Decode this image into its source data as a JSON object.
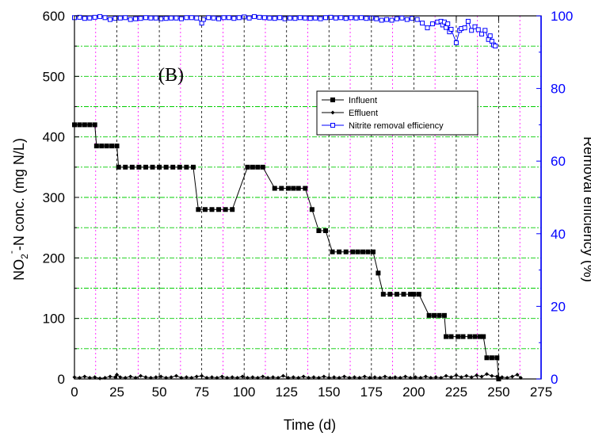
{
  "chart_data": {
    "type": "line",
    "panel_label": "(B)",
    "xlabel": "Time (d)",
    "ylabel_left": "NO2-N conc. (mg N/L)",
    "ylabel_right": "Removal efficiency (%)",
    "xlim": [
      0,
      275
    ],
    "ylim_left": [
      0,
      600
    ],
    "ylim_right": [
      0,
      100
    ],
    "xticks": [
      "0",
      "25",
      "50",
      "75",
      "100",
      "125",
      "150",
      "175",
      "200",
      "225",
      "250",
      "275"
    ],
    "yticks_left": [
      "0",
      "100",
      "200",
      "300",
      "400",
      "500",
      "600"
    ],
    "yticks_right": [
      "0",
      "20",
      "40",
      "60",
      "80",
      "100"
    ],
    "grid": true,
    "legend_position": "center-right",
    "colors": {
      "influent": "#000000",
      "effluent": "#000000",
      "efficiency": "#0000ff",
      "grid_h": "#00cc00",
      "grid_v_minor": "#ff00ff",
      "grid_v_major": "#000000"
    },
    "series": [
      {
        "name": "Influent",
        "axis": "left",
        "marker": "filled-square",
        "points": [
          [
            0,
            420
          ],
          [
            3,
            420
          ],
          [
            6,
            420
          ],
          [
            9,
            420
          ],
          [
            12,
            420
          ],
          [
            13,
            385
          ],
          [
            16,
            385
          ],
          [
            19,
            385
          ],
          [
            22,
            385
          ],
          [
            25,
            385
          ],
          [
            26,
            350
          ],
          [
            30,
            350
          ],
          [
            34,
            350
          ],
          [
            38,
            350
          ],
          [
            42,
            350
          ],
          [
            46,
            350
          ],
          [
            50,
            350
          ],
          [
            54,
            350
          ],
          [
            58,
            350
          ],
          [
            62,
            350
          ],
          [
            66,
            350
          ],
          [
            70,
            350
          ],
          [
            73,
            280
          ],
          [
            77,
            280
          ],
          [
            81,
            280
          ],
          [
            85,
            280
          ],
          [
            89,
            280
          ],
          [
            93,
            280
          ],
          [
            102,
            350
          ],
          [
            105,
            350
          ],
          [
            108,
            350
          ],
          [
            111,
            350
          ],
          [
            118,
            315
          ],
          [
            122,
            315
          ],
          [
            126,
            315
          ],
          [
            129,
            315
          ],
          [
            132,
            315
          ],
          [
            136,
            315
          ],
          [
            140,
            280
          ],
          [
            144,
            245
          ],
          [
            148,
            245
          ],
          [
            152,
            210
          ],
          [
            156,
            210
          ],
          [
            160,
            210
          ],
          [
            164,
            210
          ],
          [
            167,
            210
          ],
          [
            170,
            210
          ],
          [
            173,
            210
          ],
          [
            176,
            210
          ],
          [
            179,
            175
          ],
          [
            182,
            140
          ],
          [
            186,
            140
          ],
          [
            190,
            140
          ],
          [
            194,
            140
          ],
          [
            198,
            140
          ],
          [
            200,
            140
          ],
          [
            203,
            140
          ],
          [
            209,
            105
          ],
          [
            212,
            105
          ],
          [
            215,
            105
          ],
          [
            218,
            105
          ],
          [
            219,
            70
          ],
          [
            222,
            70
          ],
          [
            226,
            70
          ],
          [
            229,
            70
          ],
          [
            233,
            70
          ],
          [
            236,
            70
          ],
          [
            239,
            70
          ],
          [
            241,
            70
          ],
          [
            243,
            35
          ],
          [
            246,
            35
          ],
          [
            249,
            35
          ],
          [
            250,
            0
          ]
        ]
      },
      {
        "name": "Effluent",
        "axis": "left",
        "marker": "small-diamond",
        "points": [
          [
            0,
            3
          ],
          [
            3,
            2
          ],
          [
            6,
            4
          ],
          [
            9,
            2
          ],
          [
            12,
            3
          ],
          [
            15,
            1
          ],
          [
            18,
            2
          ],
          [
            21,
            4
          ],
          [
            24,
            3
          ],
          [
            25,
            7
          ],
          [
            27,
            3
          ],
          [
            30,
            2
          ],
          [
            33,
            4
          ],
          [
            36,
            2
          ],
          [
            39,
            5
          ],
          [
            42,
            3
          ],
          [
            45,
            2
          ],
          [
            48,
            3
          ],
          [
            51,
            4
          ],
          [
            54,
            2
          ],
          [
            57,
            3
          ],
          [
            60,
            5
          ],
          [
            63,
            2
          ],
          [
            66,
            3
          ],
          [
            69,
            2
          ],
          [
            72,
            4
          ],
          [
            75,
            5
          ],
          [
            78,
            2
          ],
          [
            81,
            3
          ],
          [
            84,
            2
          ],
          [
            87,
            4
          ],
          [
            90,
            2
          ],
          [
            93,
            3
          ],
          [
            96,
            2
          ],
          [
            99,
            4
          ],
          [
            102,
            2
          ],
          [
            105,
            3
          ],
          [
            108,
            2
          ],
          [
            111,
            4
          ],
          [
            114,
            2
          ],
          [
            117,
            3
          ],
          [
            120,
            2
          ],
          [
            123,
            5
          ],
          [
            126,
            2
          ],
          [
            129,
            3
          ],
          [
            132,
            2
          ],
          [
            135,
            4
          ],
          [
            138,
            2
          ],
          [
            141,
            3
          ],
          [
            144,
            2
          ],
          [
            147,
            4
          ],
          [
            150,
            2
          ],
          [
            153,
            3
          ],
          [
            156,
            2
          ],
          [
            159,
            4
          ],
          [
            162,
            2
          ],
          [
            165,
            3
          ],
          [
            168,
            2
          ],
          [
            171,
            4
          ],
          [
            174,
            2
          ],
          [
            177,
            3
          ],
          [
            180,
            2
          ],
          [
            183,
            4
          ],
          [
            186,
            2
          ],
          [
            189,
            3
          ],
          [
            192,
            2
          ],
          [
            195,
            4
          ],
          [
            198,
            2
          ],
          [
            201,
            3
          ],
          [
            204,
            2
          ],
          [
            207,
            4
          ],
          [
            210,
            2
          ],
          [
            213,
            3
          ],
          [
            216,
            2
          ],
          [
            219,
            5
          ],
          [
            222,
            3
          ],
          [
            225,
            6
          ],
          [
            228,
            3
          ],
          [
            231,
            5
          ],
          [
            234,
            3
          ],
          [
            237,
            6
          ],
          [
            240,
            4
          ],
          [
            243,
            8
          ],
          [
            246,
            5
          ],
          [
            249,
            4
          ],
          [
            252,
            3
          ],
          [
            255,
            2
          ],
          [
            258,
            4
          ],
          [
            261,
            7
          ],
          [
            263,
            2
          ]
        ]
      },
      {
        "name": "Nitrite removal efficiency",
        "axis": "right",
        "marker": "open-square",
        "points": [
          [
            0,
            99.5
          ],
          [
            3,
            99.6
          ],
          [
            6,
            99.3
          ],
          [
            9,
            99.4
          ],
          [
            12,
            99.6
          ],
          [
            15,
            99.8
          ],
          [
            18,
            99.5
          ],
          [
            21,
            99.0
          ],
          [
            24,
            99.3
          ],
          [
            27,
            99.4
          ],
          [
            30,
            99.5
          ],
          [
            33,
            99.0
          ],
          [
            36,
            99.2
          ],
          [
            39,
            99.3
          ],
          [
            42,
            99.5
          ],
          [
            45,
            99.4
          ],
          [
            48,
            99.4
          ],
          [
            51,
            99.2
          ],
          [
            54,
            99.3
          ],
          [
            57,
            99.4
          ],
          [
            60,
            99.4
          ],
          [
            63,
            99.2
          ],
          [
            66,
            99.5
          ],
          [
            69,
            99.5
          ],
          [
            72,
            99.4
          ],
          [
            75,
            98.0
          ],
          [
            76,
            99.0
          ],
          [
            79,
            99.5
          ],
          [
            82,
            99.4
          ],
          [
            85,
            99.2
          ],
          [
            88,
            99.5
          ],
          [
            91,
            99.5
          ],
          [
            94,
            99.3
          ],
          [
            97,
            99.5
          ],
          [
            100,
            99.7
          ],
          [
            103,
            99.4
          ],
          [
            106,
            99.8
          ],
          [
            109,
            99.6
          ],
          [
            112,
            99.5
          ],
          [
            115,
            99.4
          ],
          [
            118,
            99.3
          ],
          [
            121,
            99.5
          ],
          [
            124,
            99.2
          ],
          [
            127,
            99.4
          ],
          [
            130,
            99.3
          ],
          [
            133,
            99.5
          ],
          [
            136,
            99.4
          ],
          [
            139,
            99.3
          ],
          [
            142,
            99.4
          ],
          [
            145,
            99.2
          ],
          [
            148,
            99.5
          ],
          [
            151,
            99.6
          ],
          [
            154,
            99.4
          ],
          [
            157,
            99.5
          ],
          [
            160,
            99.3
          ],
          [
            163,
            99.5
          ],
          [
            166,
            99.4
          ],
          [
            169,
            99.5
          ],
          [
            172,
            99.3
          ],
          [
            175,
            99.4
          ],
          [
            178,
            99.2
          ],
          [
            181,
            98.8
          ],
          [
            184,
            99.0
          ],
          [
            187,
            98.8
          ],
          [
            190,
            99.2
          ],
          [
            193,
            99.4
          ],
          [
            196,
            99.0
          ],
          [
            199,
            99.3
          ],
          [
            202,
            99.0
          ],
          [
            205,
            98.0
          ],
          [
            208,
            96.7
          ],
          [
            211,
            97.8
          ],
          [
            214,
            98.3
          ],
          [
            216,
            98.5
          ],
          [
            217,
            97.5
          ],
          [
            218,
            98.3
          ],
          [
            219,
            96.8
          ],
          [
            220,
            97.8
          ],
          [
            221,
            95.6
          ],
          [
            222,
            96.3
          ],
          [
            225,
            92.6
          ],
          [
            227,
            96.0
          ],
          [
            228,
            96.5
          ],
          [
            230,
            96.7
          ],
          [
            232,
            98.5
          ],
          [
            234,
            96.0
          ],
          [
            236,
            97.0
          ],
          [
            238,
            96.2
          ],
          [
            240,
            95.0
          ],
          [
            242,
            96.0
          ],
          [
            244,
            93.5
          ],
          [
            245,
            94.5
          ],
          [
            246,
            93.0
          ],
          [
            247,
            92.0
          ],
          [
            248,
            91.7
          ]
        ]
      }
    ]
  }
}
